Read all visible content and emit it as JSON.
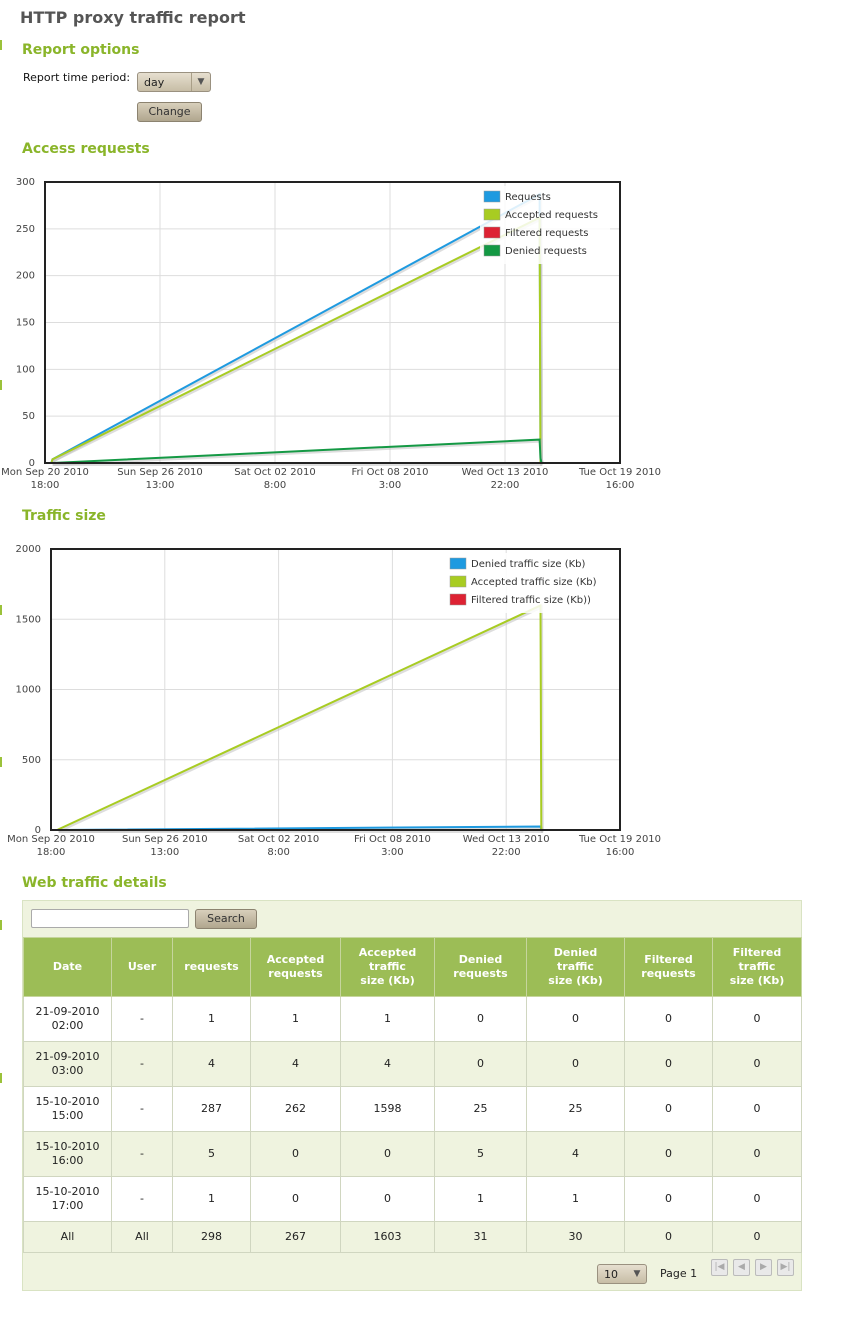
{
  "page_title": "HTTP proxy traffic report",
  "report_options": {
    "title": "Report options",
    "period_label": "Report time period:",
    "period_value": "day",
    "change_button": "Change"
  },
  "access_section": {
    "title": "Access requests"
  },
  "traffic_section": {
    "title": "Traffic size"
  },
  "details_section": {
    "title": "Web traffic details"
  },
  "colors": {
    "accent": "#8ab52a",
    "header_bg": "#9cbd56",
    "blue": "#1e9ae0",
    "lime": "#a8cc22",
    "red": "#dd2233",
    "green": "#149944"
  },
  "chart_data": [
    {
      "type": "line",
      "title": "",
      "ylim": [
        0,
        300
      ],
      "yticks": [
        0,
        50,
        100,
        150,
        200,
        250,
        300
      ],
      "xticks": [
        {
          "line1": "Mon Sep 20 2010",
          "line2": "18:00"
        },
        {
          "line1": "Sun Sep 26 2010",
          "line2": "13:00"
        },
        {
          "line1": "Sat Oct 02 2010",
          "line2": "8:00"
        },
        {
          "line1": "Fri Oct 08 2010",
          "line2": "3:00"
        },
        {
          "line1": "Wed Oct 13 2010",
          "line2": "22:00"
        },
        {
          "line1": "Tue Oct 19 2010",
          "line2": "16:00"
        }
      ],
      "legend_position": "top-right",
      "grid": true,
      "x": [
        "21-09-2010 02:00",
        "21-09-2010 03:00",
        "15-10-2010 15:00",
        "15-10-2010 16:00",
        "15-10-2010 17:00"
      ],
      "series": [
        {
          "name": "Requests",
          "color": "#1e9ae0",
          "values": [
            1,
            4,
            287,
            5,
            1
          ]
        },
        {
          "name": "Accepted requests",
          "color": "#a8cc22",
          "values": [
            1,
            4,
            262,
            0,
            0
          ]
        },
        {
          "name": "Filtered requests",
          "color": "#dd2233",
          "values": [
            0,
            0,
            0,
            0,
            0
          ]
        },
        {
          "name": "Denied requests",
          "color": "#149944",
          "values": [
            0,
            0,
            25,
            5,
            1
          ]
        }
      ]
    },
    {
      "type": "line",
      "title": "",
      "ylim": [
        0,
        2000
      ],
      "yticks": [
        0,
        500,
        1000,
        1500,
        2000
      ],
      "xticks": [
        {
          "line1": "Mon Sep 20 2010",
          "line2": "18:00"
        },
        {
          "line1": "Sun Sep 26 2010",
          "line2": "13:00"
        },
        {
          "line1": "Sat Oct 02 2010",
          "line2": "8:00"
        },
        {
          "line1": "Fri Oct 08 2010",
          "line2": "3:00"
        },
        {
          "line1": "Wed Oct 13 2010",
          "line2": "22:00"
        },
        {
          "line1": "Tue Oct 19 2010",
          "line2": "16:00"
        }
      ],
      "legend_position": "top-right",
      "grid": true,
      "x": [
        "21-09-2010 02:00",
        "21-09-2010 03:00",
        "15-10-2010 15:00",
        "15-10-2010 16:00",
        "15-10-2010 17:00"
      ],
      "series": [
        {
          "name": "Denied traffic size (Kb)",
          "color": "#1e9ae0",
          "values": [
            0,
            0,
            25,
            4,
            1
          ]
        },
        {
          "name": "Accepted traffic size (Kb)",
          "color": "#a8cc22",
          "values": [
            1,
            4,
            1598,
            0,
            0
          ]
        },
        {
          "name": "Filtered traffic size (Kb))",
          "color": "#dd2233",
          "values": [
            0,
            0,
            0,
            0,
            0
          ]
        }
      ]
    }
  ],
  "table": {
    "search_button": "Search",
    "columns": [
      [
        "Date"
      ],
      [
        "User"
      ],
      [
        "requests"
      ],
      [
        "Accepted",
        "requests"
      ],
      [
        "Accepted",
        "traffic",
        "size (Kb)"
      ],
      [
        "Denied",
        "requests"
      ],
      [
        "Denied",
        "traffic",
        "size (Kb)"
      ],
      [
        "Filtered",
        "requests"
      ],
      [
        "Filtered",
        "traffic",
        "size (Kb)"
      ]
    ],
    "rows": [
      [
        [
          "21-09-2010",
          "02:00"
        ],
        "-",
        "1",
        "1",
        "1",
        "0",
        "0",
        "0",
        "0"
      ],
      [
        [
          "21-09-2010",
          "03:00"
        ],
        "-",
        "4",
        "4",
        "4",
        "0",
        "0",
        "0",
        "0"
      ],
      [
        [
          "15-10-2010",
          "15:00"
        ],
        "-",
        "287",
        "262",
        "1598",
        "25",
        "25",
        "0",
        "0"
      ],
      [
        [
          "15-10-2010",
          "16:00"
        ],
        "-",
        "5",
        "0",
        "0",
        "5",
        "4",
        "0",
        "0"
      ],
      [
        [
          "15-10-2010",
          "17:00"
        ],
        "-",
        "1",
        "0",
        "0",
        "1",
        "1",
        "0",
        "0"
      ]
    ],
    "totals": [
      "All",
      "All",
      "298",
      "267",
      "1603",
      "31",
      "30",
      "0",
      "0"
    ],
    "pager": {
      "rows_per_page": "10",
      "page_label": "Page 1"
    }
  }
}
